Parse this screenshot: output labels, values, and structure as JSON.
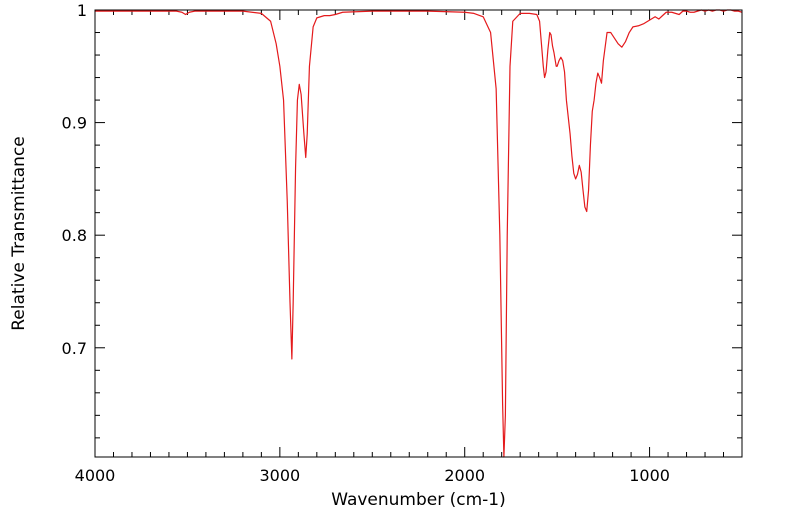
{
  "chart_data": {
    "type": "line",
    "title": "",
    "xlabel": "Wavenumber (cm-1)",
    "ylabel": "Relative Transmittance",
    "xlim": [
      4000,
      500
    ],
    "ylim": [
      0.603,
      1.0
    ],
    "x_ticks": [
      4000,
      3000,
      2000,
      1000
    ],
    "x_tick_labels": [
      "4000",
      "3000",
      "2000",
      "1000"
    ],
    "y_ticks": [
      0.7,
      0.8,
      0.9,
      1.0
    ],
    "y_tick_labels": [
      "0.7",
      "0.8",
      "0.9",
      "1"
    ],
    "grid": false,
    "series": [
      {
        "color": "#e41a1c",
        "points": [
          [
            4000,
            0.999
          ],
          [
            3700,
            0.999
          ],
          [
            3560,
            0.999
          ],
          [
            3530,
            0.998
          ],
          [
            3510,
            0.996
          ],
          [
            3490,
            0.998
          ],
          [
            3460,
            0.999
          ],
          [
            3200,
            0.999
          ],
          [
            3100,
            0.997
          ],
          [
            3050,
            0.99
          ],
          [
            3020,
            0.97
          ],
          [
            3000,
            0.95
          ],
          [
            2980,
            0.92
          ],
          [
            2960,
            0.83
          ],
          [
            2945,
            0.74
          ],
          [
            2935,
            0.69
          ],
          [
            2928,
            0.74
          ],
          [
            2915,
            0.86
          ],
          [
            2905,
            0.92
          ],
          [
            2895,
            0.934
          ],
          [
            2885,
            0.925
          ],
          [
            2870,
            0.89
          ],
          [
            2860,
            0.869
          ],
          [
            2852,
            0.89
          ],
          [
            2840,
            0.95
          ],
          [
            2820,
            0.985
          ],
          [
            2800,
            0.993
          ],
          [
            2760,
            0.995
          ],
          [
            2730,
            0.995
          ],
          [
            2700,
            0.996
          ],
          [
            2660,
            0.998
          ],
          [
            2500,
            0.999
          ],
          [
            2200,
            0.999
          ],
          [
            2000,
            0.998
          ],
          [
            1950,
            0.997
          ],
          [
            1900,
            0.994
          ],
          [
            1860,
            0.98
          ],
          [
            1830,
            0.93
          ],
          [
            1810,
            0.8
          ],
          [
            1795,
            0.65
          ],
          [
            1788,
            0.603
          ],
          [
            1780,
            0.64
          ],
          [
            1770,
            0.8
          ],
          [
            1755,
            0.95
          ],
          [
            1740,
            0.99
          ],
          [
            1700,
            0.997
          ],
          [
            1650,
            0.997
          ],
          [
            1610,
            0.996
          ],
          [
            1595,
            0.99
          ],
          [
            1585,
            0.97
          ],
          [
            1575,
            0.95
          ],
          [
            1568,
            0.94
          ],
          [
            1560,
            0.945
          ],
          [
            1550,
            0.965
          ],
          [
            1540,
            0.98
          ],
          [
            1533,
            0.978
          ],
          [
            1525,
            0.968
          ],
          [
            1517,
            0.962
          ],
          [
            1510,
            0.955
          ],
          [
            1505,
            0.95
          ],
          [
            1500,
            0.95
          ],
          [
            1490,
            0.955
          ],
          [
            1480,
            0.958
          ],
          [
            1470,
            0.955
          ],
          [
            1460,
            0.945
          ],
          [
            1450,
            0.92
          ],
          [
            1440,
            0.905
          ],
          [
            1430,
            0.89
          ],
          [
            1420,
            0.87
          ],
          [
            1410,
            0.855
          ],
          [
            1400,
            0.85
          ],
          [
            1390,
            0.854
          ],
          [
            1380,
            0.862
          ],
          [
            1370,
            0.856
          ],
          [
            1360,
            0.84
          ],
          [
            1350,
            0.825
          ],
          [
            1340,
            0.821
          ],
          [
            1330,
            0.84
          ],
          [
            1320,
            0.88
          ],
          [
            1310,
            0.91
          ],
          [
            1300,
            0.92
          ],
          [
            1290,
            0.935
          ],
          [
            1280,
            0.944
          ],
          [
            1270,
            0.94
          ],
          [
            1260,
            0.935
          ],
          [
            1250,
            0.955
          ],
          [
            1230,
            0.98
          ],
          [
            1210,
            0.98
          ],
          [
            1190,
            0.975
          ],
          [
            1170,
            0.97
          ],
          [
            1150,
            0.967
          ],
          [
            1130,
            0.972
          ],
          [
            1110,
            0.98
          ],
          [
            1090,
            0.985
          ],
          [
            1060,
            0.986
          ],
          [
            1030,
            0.988
          ],
          [
            1000,
            0.991
          ],
          [
            970,
            0.994
          ],
          [
            950,
            0.992
          ],
          [
            930,
            0.995
          ],
          [
            910,
            0.998
          ],
          [
            880,
            0.998
          ],
          [
            860,
            0.997
          ],
          [
            840,
            0.996
          ],
          [
            820,
            0.999
          ],
          [
            800,
            0.999
          ],
          [
            780,
            0.998
          ],
          [
            760,
            0.998
          ],
          [
            740,
            0.999
          ],
          [
            720,
            1.0
          ],
          [
            700,
            0.999
          ],
          [
            680,
            1.0
          ],
          [
            660,
            0.999
          ],
          [
            640,
            1.0
          ],
          [
            620,
            1.0
          ],
          [
            600,
            0.999
          ],
          [
            580,
            1.0
          ],
          [
            560,
            1.0
          ],
          [
            540,
            0.999
          ],
          [
            520,
            0.999
          ],
          [
            500,
            0.998
          ]
        ]
      }
    ]
  }
}
